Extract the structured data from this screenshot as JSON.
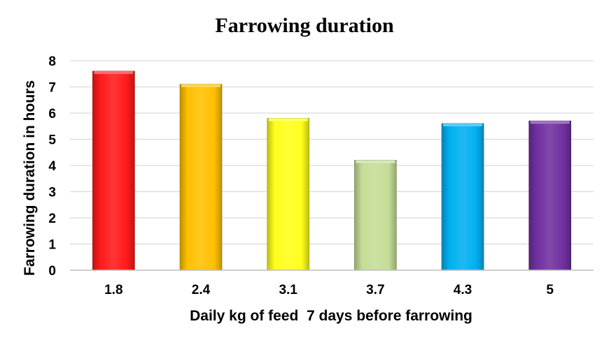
{
  "chart_data": {
    "type": "bar",
    "title": "Farrowing duration",
    "xlabel": "Daily kg of feed  7 days before farrowing",
    "ylabel": "Farrowing duration in hours",
    "categories": [
      "1.8",
      "2.4",
      "3.1",
      "3.7",
      "4.3",
      "5"
    ],
    "values": [
      7.6,
      7.1,
      5.8,
      4.2,
      5.6,
      5.7
    ],
    "bar_colors": [
      "#ff1a1a",
      "#ffc000",
      "#ffff1a",
      "#c4dd96",
      "#00b0f0",
      "#7030a0"
    ],
    "ylim": [
      0,
      8
    ],
    "yticks": [
      "0",
      "1",
      "2",
      "3",
      "4",
      "5",
      "6",
      "7",
      "8"
    ],
    "grid": true,
    "legend": "none"
  }
}
